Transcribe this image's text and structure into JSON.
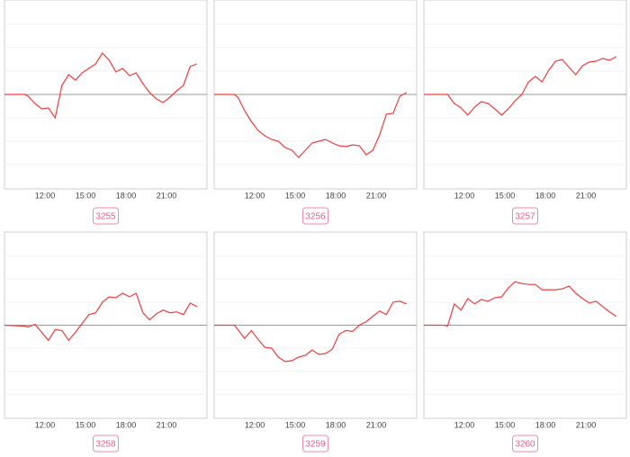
{
  "chart_data": [
    {
      "type": "line",
      "label": "3255",
      "color": "#f03c3c",
      "xlim": [
        9,
        24
      ],
      "ylim": [
        -105,
        105
      ],
      "baseline": 0,
      "grid": true,
      "xticks": [
        {
          "value": 12,
          "label": "12:00"
        },
        {
          "value": 15,
          "label": "15:00"
        },
        {
          "value": 18,
          "label": "18:00"
        },
        {
          "value": 21,
          "label": "21:00"
        }
      ],
      "yticks": [
        -78,
        -52,
        -26,
        0,
        26,
        52,
        78
      ],
      "x": [
        9,
        10.5,
        10.75,
        11.25,
        11.75,
        12.25,
        12.75,
        13.25,
        13.75,
        14.25,
        14.75,
        15.25,
        15.75,
        16.25,
        16.75,
        17.25,
        17.75,
        18.25,
        18.75,
        19.25,
        19.75,
        20.25,
        20.75,
        21.25,
        21.75,
        22.25,
        22.75,
        23.25
      ],
      "values": [
        0,
        0,
        -2,
        -10,
        -16,
        -15,
        -26,
        10,
        22,
        16,
        24,
        29,
        34,
        46,
        38,
        25,
        29,
        21,
        24,
        12,
        2,
        -5,
        -9,
        -3,
        4,
        10,
        31,
        34
      ]
    },
    {
      "type": "line",
      "label": "3256",
      "color": "#f03c3c",
      "xlim": [
        9,
        24
      ],
      "ylim": [
        -105,
        105
      ],
      "baseline": 0,
      "grid": true,
      "xticks": [
        {
          "value": 12,
          "label": "12:00"
        },
        {
          "value": 15,
          "label": "15:00"
        },
        {
          "value": 18,
          "label": "18:00"
        },
        {
          "value": 21,
          "label": "21:00"
        }
      ],
      "yticks": [
        -78,
        -52,
        -26,
        0,
        26,
        52,
        78
      ],
      "x": [
        9,
        10.5,
        10.75,
        11.25,
        11.75,
        12.25,
        12.75,
        13.25,
        13.75,
        14.25,
        14.75,
        15.25,
        15.75,
        16.25,
        16.75,
        17.25,
        17.75,
        18.25,
        18.75,
        19.25,
        19.75,
        20.25,
        20.75,
        21.25,
        21.75,
        22.25,
        22.75,
        23.25
      ],
      "values": [
        0,
        0,
        -3,
        -18,
        -30,
        -40,
        -46,
        -50,
        -52,
        -59,
        -62,
        -70,
        -62,
        -54,
        -52,
        -50,
        -54,
        -57,
        -58,
        -56,
        -57,
        -67,
        -62,
        -45,
        -22,
        -21,
        -2,
        2
      ]
    },
    {
      "type": "line",
      "label": "3257",
      "color": "#f03c3c",
      "xlim": [
        9,
        24
      ],
      "ylim": [
        -105,
        105
      ],
      "baseline": 0,
      "grid": true,
      "xticks": [
        {
          "value": 12,
          "label": "12:00"
        },
        {
          "value": 15,
          "label": "15:00"
        },
        {
          "value": 18,
          "label": "18:00"
        },
        {
          "value": 21,
          "label": "21:00"
        }
      ],
      "yticks": [
        -78,
        -52,
        -26,
        0,
        26,
        52,
        78
      ],
      "x": [
        9,
        10.5,
        10.75,
        11.25,
        11.75,
        12.25,
        12.75,
        13.25,
        13.75,
        14.25,
        14.75,
        15.25,
        15.75,
        16.25,
        16.75,
        17.25,
        17.75,
        18.25,
        18.75,
        19.25,
        19.75,
        20.25,
        20.75,
        21.25,
        21.75,
        22.25,
        22.75,
        23.25
      ],
      "values": [
        0,
        0,
        0,
        -10,
        -15,
        -23,
        -14,
        -8,
        -10,
        -16,
        -23,
        -16,
        -7,
        0,
        14,
        20,
        14,
        27,
        37,
        39,
        30,
        22,
        32,
        36,
        37,
        40,
        38,
        42
      ]
    },
    {
      "type": "line",
      "label": "3258",
      "color": "#f03c3c",
      "xlim": [
        9,
        24
      ],
      "ylim": [
        -105,
        105
      ],
      "baseline": 0,
      "grid": true,
      "xticks": [
        {
          "value": 12,
          "label": "12:00"
        },
        {
          "value": 15,
          "label": "15:00"
        },
        {
          "value": 18,
          "label": "18:00"
        },
        {
          "value": 21,
          "label": "21:00"
        }
      ],
      "yticks": [
        -78,
        -52,
        -26,
        0,
        26,
        52,
        78
      ],
      "x": [
        9,
        10.5,
        10.75,
        11.25,
        11.75,
        12.25,
        12.75,
        13.25,
        13.75,
        14.25,
        14.75,
        15.25,
        15.75,
        16.25,
        16.75,
        17.25,
        17.75,
        18.25,
        18.75,
        19.25,
        19.75,
        20.25,
        20.75,
        21.25,
        21.75,
        22.25,
        22.75,
        23.25
      ],
      "values": [
        0,
        -1,
        -2,
        1,
        -8,
        -17,
        -5,
        -6,
        -17,
        -8,
        2,
        12,
        14,
        26,
        32,
        31,
        36,
        32,
        36,
        14,
        6,
        13,
        17,
        14,
        15,
        12,
        25,
        21
      ]
    },
    {
      "type": "line",
      "label": "3259",
      "color": "#f03c3c",
      "xlim": [
        9,
        24
      ],
      "ylim": [
        -105,
        105
      ],
      "baseline": 0,
      "grid": true,
      "xticks": [
        {
          "value": 12,
          "label": "12:00"
        },
        {
          "value": 15,
          "label": "15:00"
        },
        {
          "value": 18,
          "label": "18:00"
        },
        {
          "value": 21,
          "label": "21:00"
        }
      ],
      "yticks": [
        -78,
        -52,
        -26,
        0,
        26,
        52,
        78
      ],
      "x": [
        9,
        10.5,
        10.75,
        11.25,
        11.75,
        12.25,
        12.75,
        13.25,
        13.75,
        14.25,
        14.75,
        15.25,
        15.75,
        16.25,
        16.75,
        17.25,
        17.75,
        18.25,
        18.75,
        19.25,
        19.75,
        20.25,
        20.75,
        21.25,
        21.75,
        22.25,
        22.75,
        23.25
      ],
      "values": [
        0,
        0,
        -5,
        -15,
        -6,
        -16,
        -25,
        -26,
        -36,
        -41,
        -40,
        -36,
        -34,
        -28,
        -33,
        -32,
        -27,
        -10,
        -6,
        -7,
        0,
        4,
        10,
        16,
        12,
        26,
        27,
        24
      ]
    },
    {
      "type": "line",
      "label": "3260",
      "color": "#f03c3c",
      "xlim": [
        9,
        24
      ],
      "ylim": [
        -105,
        105
      ],
      "baseline": 0,
      "grid": true,
      "xticks": [
        {
          "value": 12,
          "label": "12:00"
        },
        {
          "value": 15,
          "label": "15:00"
        },
        {
          "value": 18,
          "label": "18:00"
        },
        {
          "value": 21,
          "label": "21:00"
        }
      ],
      "yticks": [
        -78,
        -52,
        -26,
        0,
        26,
        52,
        78
      ],
      "x": [
        9,
        10.5,
        10.75,
        11.25,
        11.75,
        12.25,
        12.75,
        13.25,
        13.75,
        14.25,
        14.75,
        15.25,
        15.75,
        16.25,
        16.75,
        17.25,
        17.75,
        18.25,
        18.75,
        19.25,
        19.75,
        20.25,
        20.75,
        21.25,
        21.75,
        22.25,
        22.75,
        23.25
      ],
      "values": [
        0,
        0,
        -1,
        24,
        17,
        30,
        24,
        29,
        27,
        31,
        32,
        42,
        49,
        47,
        46,
        46,
        40,
        40,
        40,
        41,
        44,
        36,
        30,
        25,
        27,
        21,
        15,
        10
      ]
    }
  ]
}
